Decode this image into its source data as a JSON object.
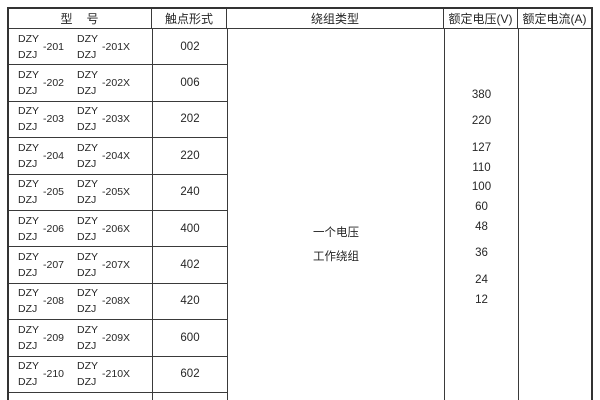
{
  "table": {
    "headers": {
      "model": "型　号",
      "contact_form": "触点形式",
      "winding_type": "绕组类型",
      "rated_voltage": "额定电压(V)",
      "rated_current": "额定电流(A)"
    },
    "rows": [
      {
        "prefix_top": "DZY",
        "prefix_bottom": "DZJ",
        "number": "-201",
        "number_x": "-201X",
        "contact_form": "002"
      },
      {
        "prefix_top": "DZY",
        "prefix_bottom": "DZJ",
        "number": "-202",
        "number_x": "-202X",
        "contact_form": "006"
      },
      {
        "prefix_top": "DZY",
        "prefix_bottom": "DZJ",
        "number": "-203",
        "number_x": "-203X",
        "contact_form": "202"
      },
      {
        "prefix_top": "DZY",
        "prefix_bottom": "DZJ",
        "number": "-204",
        "number_x": "-204X",
        "contact_form": "220"
      },
      {
        "prefix_top": "DZY",
        "prefix_bottom": "DZJ",
        "number": "-205",
        "number_x": "-205X",
        "contact_form": "240"
      },
      {
        "prefix_top": "DZY",
        "prefix_bottom": "DZJ",
        "number": "-206",
        "number_x": "-206X",
        "contact_form": "400"
      },
      {
        "prefix_top": "DZY",
        "prefix_bottom": "DZJ",
        "number": "-207",
        "number_x": "-207X",
        "contact_form": "402"
      },
      {
        "prefix_top": "DZY",
        "prefix_bottom": "DZJ",
        "number": "-208",
        "number_x": "-208X",
        "contact_form": "420"
      },
      {
        "prefix_top": "DZY",
        "prefix_bottom": "DZJ",
        "number": "-209",
        "number_x": "-209X",
        "contact_form": "600"
      },
      {
        "prefix_top": "DZY",
        "prefix_bottom": "DZJ",
        "number": "-210",
        "number_x": "-210X",
        "contact_form": "602"
      }
    ],
    "winding_type_lines": [
      "一个电压",
      "工作绕组"
    ],
    "rated_voltages": [
      "380",
      "220",
      "127",
      "110",
      "100",
      "60",
      "48",
      "36",
      "24",
      "12"
    ],
    "rated_currents": [],
    "colors": {
      "border": "#3a3a3a",
      "outer_border": "#333333",
      "text": "#262626",
      "background": "#ffffff"
    }
  }
}
